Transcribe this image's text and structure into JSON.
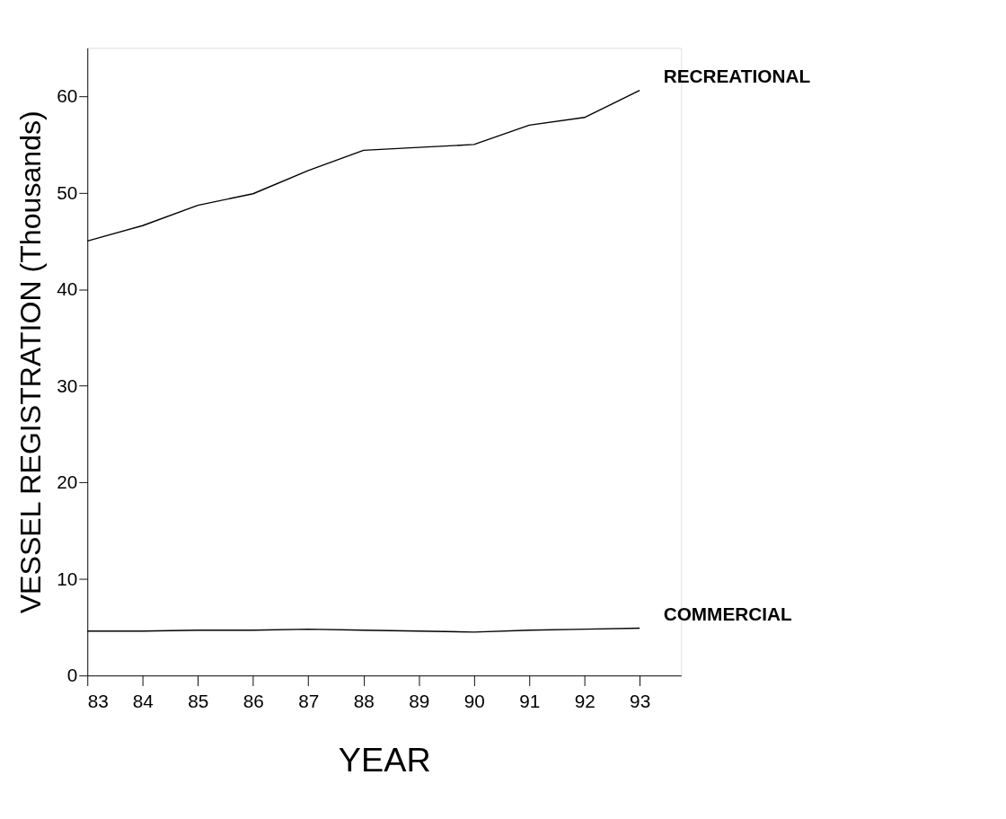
{
  "chart_data": {
    "type": "line",
    "xlabel": "YEAR",
    "ylabel": "VESSEL REGISTRATION (Thousands)",
    "x": [
      83,
      84,
      85,
      86,
      87,
      88,
      89,
      90,
      91,
      92,
      93
    ],
    "series": [
      {
        "color": "#000000",
        "values": [
          45.0,
          46.6,
          48.7,
          49.9,
          52.3,
          54.4,
          54.7,
          55.0,
          57.0,
          57.8,
          60.6
        ]
      },
      {
        "color": "#000000",
        "values": [
          4.6,
          4.6,
          4.7,
          4.7,
          4.8,
          4.7,
          4.6,
          4.5,
          4.7,
          4.8,
          4.9
        ]
      }
    ],
    "annotations": [
      {
        "text": "RECREATIONAL",
        "x": 93,
        "y": 60.6
      },
      {
        "text": "COMMERCIAL",
        "x": 93,
        "y": 4.9
      }
    ],
    "xlim": [
      83,
      93.75
    ],
    "ylim": [
      0,
      65
    ],
    "xticks": [
      83,
      84,
      85,
      86,
      87,
      88,
      89,
      90,
      91,
      92,
      93
    ],
    "yticks": [
      0,
      10,
      20,
      30,
      40,
      50,
      60
    ],
    "grid": false,
    "legend": false,
    "marker": "none",
    "line_style": "solid"
  }
}
